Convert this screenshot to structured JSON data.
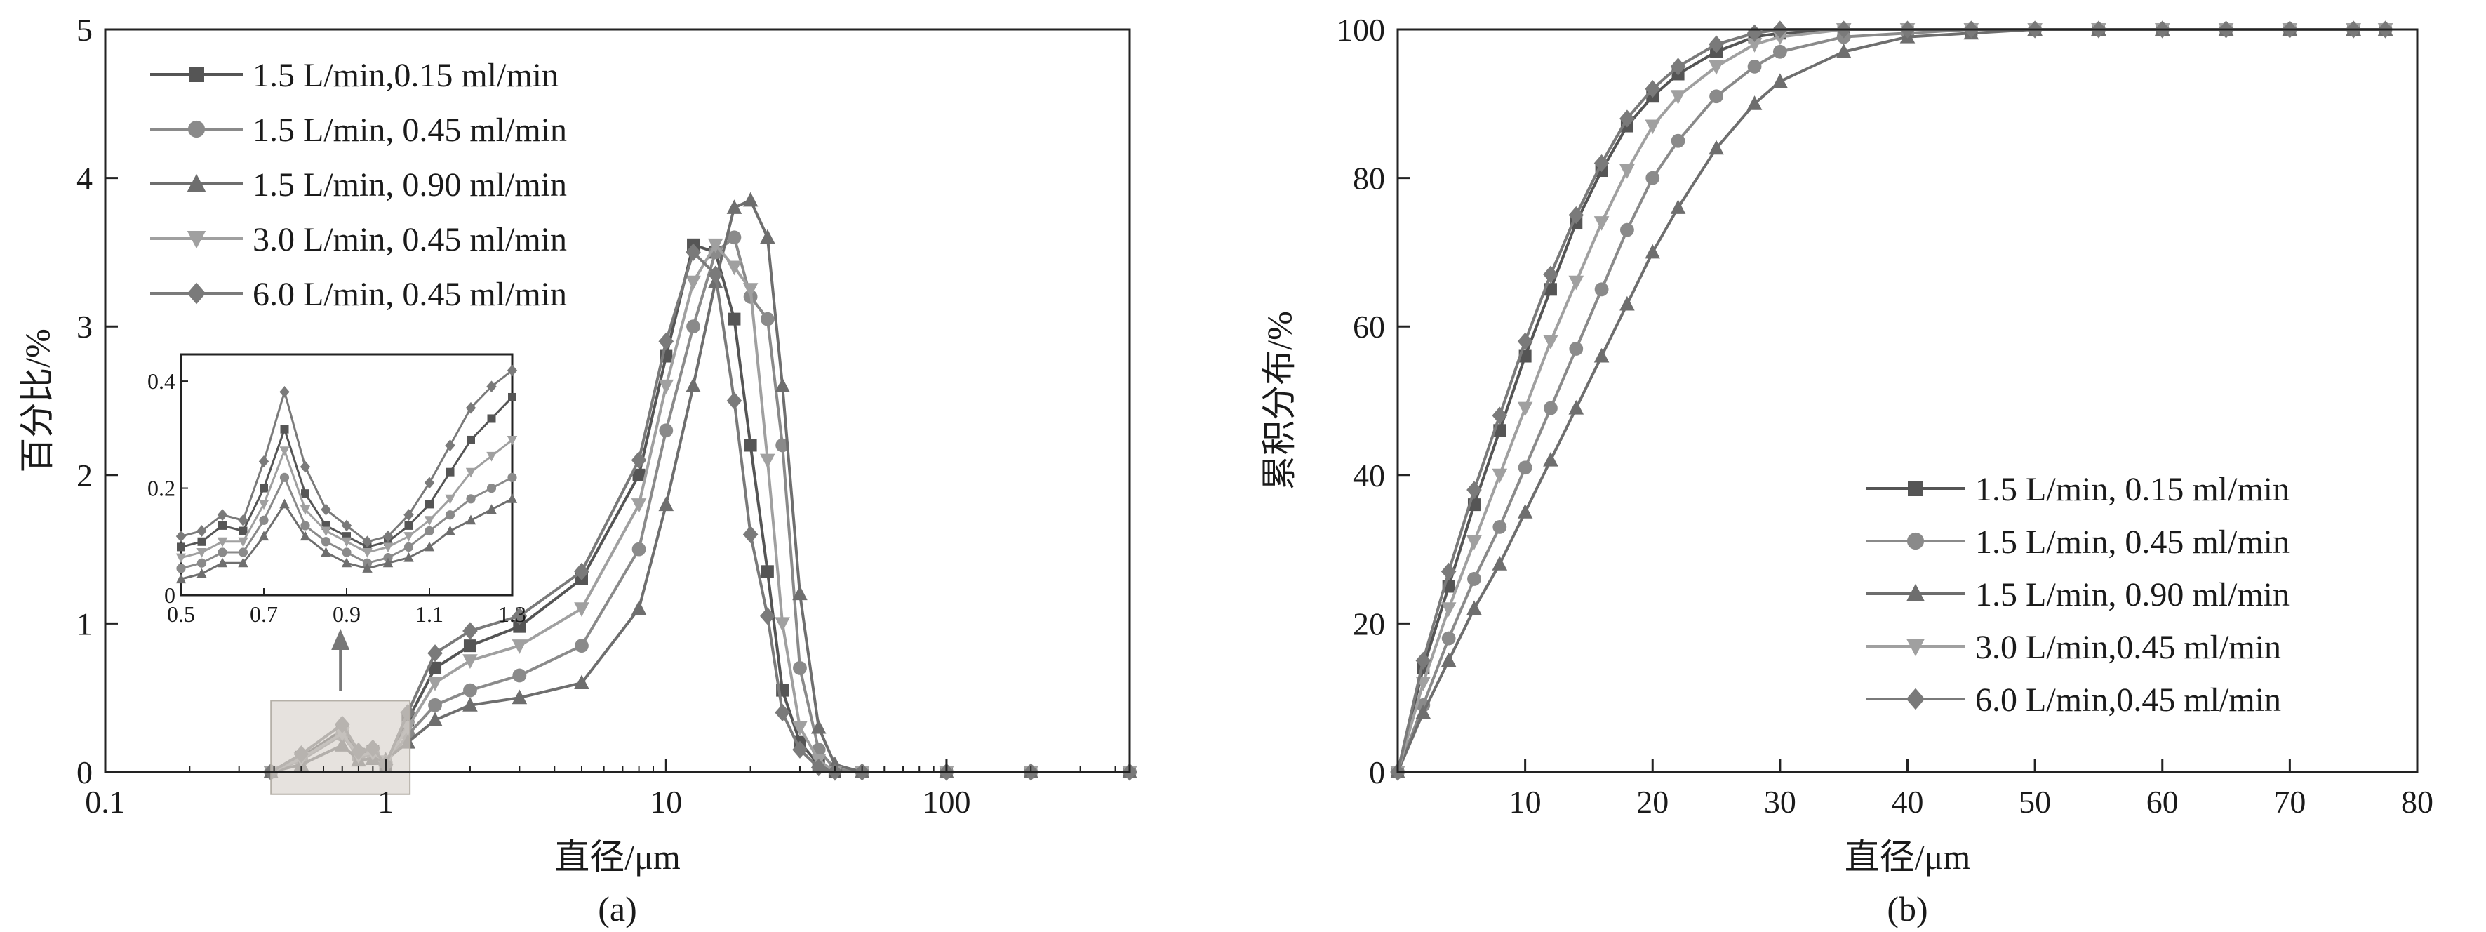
{
  "chart_data": [
    {
      "id": "a",
      "type": "line",
      "panel_label": "(a)",
      "xlabel": "直径/μm",
      "ylabel": "百分比/%",
      "xscale": "log",
      "xlim": [
        0.1,
        450
      ],
      "ylim": [
        0,
        5
      ],
      "xticks": [
        0.1,
        1,
        10,
        100
      ],
      "xtick_labels": [
        "0.1",
        "1",
        "10",
        "100"
      ],
      "yticks": [
        0,
        1,
        2,
        3,
        4,
        5
      ],
      "ytick_labels": [
        "0",
        "1",
        "2",
        "3",
        "4",
        "5"
      ],
      "legend_position": "top-left",
      "grid": false,
      "series": [
        {
          "name": "1.5 L/min,0.15 ml/min",
          "marker": "square",
          "color": "#555555",
          "x": [
            0.39,
            0.5,
            0.7,
            0.8,
            0.9,
            1.0,
            1.2,
            1.5,
            2.0,
            3.0,
            5.0,
            8.0,
            10.0,
            12.5,
            15.0,
            17.5,
            20.0,
            23.0,
            26.0,
            30.0,
            35.0,
            40.0,
            50.0,
            100.0,
            200.0,
            450.0
          ],
          "values": [
            0.0,
            0.1,
            0.28,
            0.12,
            0.14,
            0.05,
            0.35,
            0.7,
            0.85,
            0.98,
            1.3,
            2.0,
            2.8,
            3.55,
            3.5,
            3.05,
            2.2,
            1.35,
            0.55,
            0.2,
            0.05,
            0.0,
            0.0,
            0.0,
            0.0,
            0.0
          ]
        },
        {
          "name": "1.5 L/min, 0.45 ml/min",
          "marker": "circle",
          "color": "#8a8a8a",
          "x": [
            0.39,
            0.5,
            0.7,
            0.8,
            0.9,
            1.0,
            1.2,
            1.5,
            2.0,
            3.0,
            5.0,
            8.0,
            10.0,
            12.5,
            15.0,
            17.5,
            20.0,
            23.0,
            26.0,
            30.0,
            35.0,
            40.0,
            50.0,
            100.0,
            200.0,
            450.0
          ],
          "values": [
            0.0,
            0.08,
            0.25,
            0.1,
            0.12,
            0.06,
            0.25,
            0.45,
            0.55,
            0.65,
            0.85,
            1.5,
            2.3,
            3.0,
            3.5,
            3.6,
            3.2,
            3.05,
            2.2,
            0.7,
            0.15,
            0.02,
            0.0,
            0.0,
            0.0,
            0.0
          ]
        },
        {
          "name": "1.5 L/min, 0.90 ml/min",
          "marker": "triangle-up",
          "color": "#6e6e6e",
          "x": [
            0.39,
            0.5,
            0.7,
            0.8,
            0.9,
            1.0,
            1.2,
            1.5,
            2.0,
            3.0,
            5.0,
            8.0,
            10.0,
            12.5,
            15.0,
            17.5,
            20.0,
            23.0,
            26.0,
            30.0,
            35.0,
            40.0,
            50.0,
            100.0,
            200.0,
            450.0
          ],
          "values": [
            0.0,
            0.05,
            0.18,
            0.08,
            0.09,
            0.08,
            0.2,
            0.35,
            0.45,
            0.5,
            0.6,
            1.1,
            1.8,
            2.6,
            3.3,
            3.8,
            3.85,
            3.6,
            2.6,
            1.2,
            0.3,
            0.05,
            0.0,
            0.0,
            0.0,
            0.0
          ]
        },
        {
          "name": "3.0 L/min, 0.45 ml/min",
          "marker": "triangle-down",
          "color": "#a0a0a0",
          "x": [
            0.39,
            0.5,
            0.7,
            0.8,
            0.9,
            1.0,
            1.2,
            1.5,
            2.0,
            3.0,
            5.0,
            8.0,
            10.0,
            12.5,
            15.0,
            17.5,
            20.0,
            23.0,
            26.0,
            30.0,
            35.0,
            40.0,
            50.0,
            100.0,
            200.0,
            450.0
          ],
          "values": [
            0.0,
            0.09,
            0.26,
            0.11,
            0.13,
            0.07,
            0.3,
            0.6,
            0.75,
            0.85,
            1.1,
            1.8,
            2.6,
            3.3,
            3.55,
            3.4,
            3.25,
            2.1,
            1.0,
            0.3,
            0.08,
            0.0,
            0.0,
            0.0,
            0.0,
            0.0
          ]
        },
        {
          "name": "6.0 L/min, 0.45 ml/min",
          "marker": "diamond",
          "color": "#7a7a7a",
          "x": [
            0.39,
            0.5,
            0.7,
            0.8,
            0.9,
            1.0,
            1.2,
            1.5,
            2.0,
            3.0,
            5.0,
            8.0,
            10.0,
            12.5,
            15.0,
            17.5,
            20.0,
            23.0,
            26.0,
            30.0,
            35.0,
            40.0,
            50.0,
            100.0,
            200.0,
            450.0
          ],
          "values": [
            0.0,
            0.12,
            0.32,
            0.14,
            0.16,
            0.05,
            0.4,
            0.8,
            0.95,
            1.05,
            1.35,
            2.1,
            2.9,
            3.5,
            3.35,
            2.5,
            1.6,
            1.05,
            0.4,
            0.15,
            0.03,
            0.0,
            0.0,
            0.0,
            0.0,
            0.0
          ]
        }
      ],
      "inset": {
        "xlim": [
          0.5,
          1.3
        ],
        "ylim": [
          0,
          0.45
        ],
        "xticks": [
          0.5,
          0.7,
          0.9,
          1.1,
          1.3
        ],
        "xtick_labels": [
          "0.5",
          "0.7",
          "0.9",
          "1.1",
          "1.3"
        ],
        "yticks": [
          0,
          0.2,
          0.4
        ],
        "ytick_labels": [
          "0",
          "0.2",
          "0.4"
        ],
        "x": [
          0.5,
          0.55,
          0.6,
          0.65,
          0.7,
          0.75,
          0.8,
          0.85,
          0.9,
          0.95,
          1.0,
          1.05,
          1.1,
          1.15,
          1.2,
          1.25,
          1.3
        ],
        "series_values": [
          [
            0.09,
            0.1,
            0.13,
            0.12,
            0.2,
            0.31,
            0.19,
            0.13,
            0.11,
            0.09,
            0.1,
            0.13,
            0.17,
            0.23,
            0.29,
            0.33,
            0.37
          ],
          [
            0.05,
            0.06,
            0.08,
            0.08,
            0.14,
            0.22,
            0.13,
            0.1,
            0.08,
            0.06,
            0.07,
            0.09,
            0.12,
            0.15,
            0.18,
            0.2,
            0.22
          ],
          [
            0.03,
            0.04,
            0.06,
            0.06,
            0.11,
            0.17,
            0.11,
            0.08,
            0.06,
            0.05,
            0.06,
            0.07,
            0.09,
            0.12,
            0.14,
            0.16,
            0.18
          ],
          [
            0.07,
            0.08,
            0.1,
            0.1,
            0.17,
            0.27,
            0.16,
            0.12,
            0.1,
            0.08,
            0.09,
            0.11,
            0.14,
            0.18,
            0.23,
            0.26,
            0.29
          ],
          [
            0.11,
            0.12,
            0.15,
            0.14,
            0.25,
            0.38,
            0.24,
            0.16,
            0.13,
            0.1,
            0.11,
            0.15,
            0.21,
            0.28,
            0.35,
            0.39,
            0.42
          ]
        ]
      }
    },
    {
      "id": "b",
      "type": "line",
      "panel_label": "(b)",
      "xlabel": "直径/μm",
      "ylabel": "累积分布/%",
      "xscale": "linear",
      "xlim": [
        0,
        80
      ],
      "ylim": [
        0,
        100
      ],
      "xticks": [
        10,
        20,
        30,
        40,
        50,
        60,
        70,
        80
      ],
      "xtick_labels": [
        "10",
        "20",
        "30",
        "40",
        "50",
        "60",
        "70",
        "80"
      ],
      "yticks": [
        0,
        20,
        40,
        60,
        80,
        100
      ],
      "ytick_labels": [
        "0",
        "20",
        "40",
        "60",
        "80",
        "100"
      ],
      "legend_position": "bottom-right",
      "grid": false,
      "series": [
        {
          "name": "1.5 L/min, 0.15 ml/min",
          "marker": "square",
          "color": "#555555",
          "x": [
            0,
            2,
            4,
            6,
            8,
            10,
            12,
            14,
            16,
            18,
            20,
            22,
            25,
            28,
            30,
            35,
            40,
            45,
            50,
            55,
            60,
            65,
            70,
            75,
            77.5
          ],
          "values": [
            0,
            14,
            25,
            36,
            46,
            56,
            65,
            74,
            81,
            87,
            91,
            94,
            97,
            99,
            99.5,
            100,
            100,
            100,
            100,
            100,
            100,
            100,
            100,
            100,
            100
          ]
        },
        {
          "name": "1.5 L/min, 0.45 ml/min",
          "marker": "circle",
          "color": "#8a8a8a",
          "x": [
            0,
            2,
            4,
            6,
            8,
            10,
            12,
            14,
            16,
            18,
            20,
            22,
            25,
            28,
            30,
            35,
            40,
            45,
            50,
            55,
            60,
            65,
            70,
            75,
            77.5
          ],
          "values": [
            0,
            9,
            18,
            26,
            33,
            41,
            49,
            57,
            65,
            73,
            80,
            85,
            91,
            95,
            97,
            99,
            99.5,
            100,
            100,
            100,
            100,
            100,
            100,
            100,
            100
          ]
        },
        {
          "name": "1.5 L/min, 0.90 ml/min",
          "marker": "triangle-up",
          "color": "#6e6e6e",
          "x": [
            0,
            2,
            4,
            6,
            8,
            10,
            12,
            14,
            16,
            18,
            20,
            22,
            25,
            28,
            30,
            35,
            40,
            45,
            50,
            55,
            60,
            65,
            70,
            75,
            77.5
          ],
          "values": [
            0,
            8,
            15,
            22,
            28,
            35,
            42,
            49,
            56,
            63,
            70,
            76,
            84,
            90,
            93,
            97,
            99,
            99.5,
            100,
            100,
            100,
            100,
            100,
            100,
            100
          ]
        },
        {
          "name": "3.0 L/min,0.45 ml/min",
          "marker": "triangle-down",
          "color": "#a0a0a0",
          "x": [
            0,
            2,
            4,
            6,
            8,
            10,
            12,
            14,
            16,
            18,
            20,
            22,
            25,
            28,
            30,
            35,
            40,
            45,
            50,
            55,
            60,
            65,
            70,
            75,
            77.5
          ],
          "values": [
            0,
            12,
            22,
            31,
            40,
            49,
            58,
            66,
            74,
            81,
            87,
            91,
            95,
            98,
            99,
            100,
            100,
            100,
            100,
            100,
            100,
            100,
            100,
            100,
            100
          ]
        },
        {
          "name": "6.0 L/min,0.45 ml/min",
          "marker": "diamond",
          "color": "#7a7a7a",
          "x": [
            0,
            2,
            4,
            6,
            8,
            10,
            12,
            14,
            16,
            18,
            20,
            22,
            25,
            28,
            30,
            35,
            40,
            45,
            50,
            55,
            60,
            65,
            70,
            75,
            77.5
          ],
          "values": [
            0,
            15,
            27,
            38,
            48,
            58,
            67,
            75,
            82,
            88,
            92,
            95,
            98,
            99.5,
            100,
            100,
            100,
            100,
            100,
            100,
            100,
            100,
            100,
            100,
            100
          ]
        }
      ]
    }
  ]
}
